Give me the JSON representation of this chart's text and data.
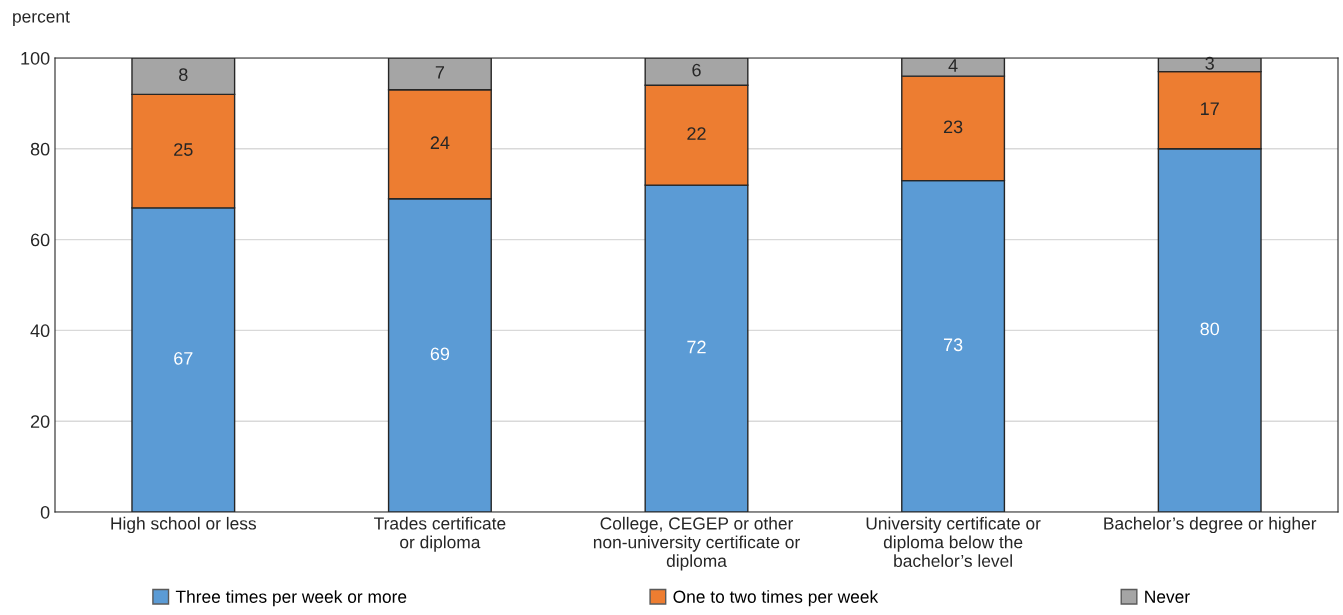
{
  "chart_data": {
    "type": "bar",
    "stacked": true,
    "ylabel": "percent",
    "categories": [
      "High school or less",
      "Trades certificate\nor diploma",
      "College, CEGEP or other\nnon-university certificate or\ndiploma",
      "University certificate or\ndiploma below the\nbachelor’s level",
      "Bachelor’s degree or higher"
    ],
    "series": [
      {
        "name": "Three times per week or more",
        "color": "#5b9bd5",
        "values": [
          67,
          69,
          72,
          73,
          80
        ]
      },
      {
        "name": "One to two times per week",
        "color": "#ed7d31",
        "values": [
          25,
          24,
          22,
          23,
          17
        ]
      },
      {
        "name": "Never",
        "color": "#a5a5a5",
        "values": [
          8,
          7,
          6,
          4,
          3
        ]
      }
    ],
    "ylim": [
      0,
      100
    ],
    "yticks": [
      0,
      20,
      40,
      60,
      80,
      100
    ],
    "grid": "y",
    "legend": "bottom",
    "data_labels": true
  }
}
